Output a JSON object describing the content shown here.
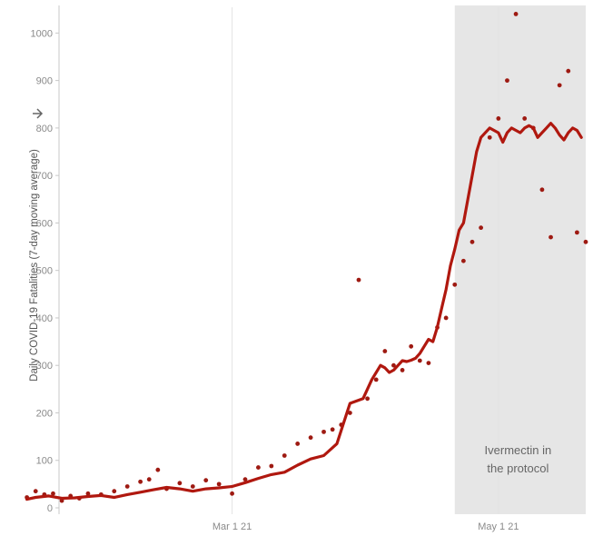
{
  "chart_data": {
    "type": "line",
    "ylabel": "Daily COVID-19 Fatalities (7-day moving average)",
    "ylabel_icon": "sort-arrow-icon",
    "ylim": [
      0,
      1060
    ],
    "xlim": [
      "2021-01-11",
      "2021-05-21"
    ],
    "y_ticks": [
      0,
      100,
      200,
      300,
      400,
      500,
      600,
      700,
      800,
      900,
      1000
    ],
    "x_ticks": [
      {
        "label": "Mar 1 21",
        "value": "2021-03-01"
      },
      {
        "label": "May 1 21",
        "value": "2021-05-01"
      }
    ],
    "grid": "vertical lines at x ticks",
    "shaded_region": {
      "start": "2021-04-21",
      "end": "2021-05-21",
      "color": "#e6e6e6",
      "annotation": [
        "Ivermectin in",
        "the protocol"
      ]
    },
    "colors": {
      "line": "#b0180f",
      "points": "#9e1a12"
    },
    "series": [
      {
        "kind": "line",
        "x": [
          "2021-01-13",
          "2021-01-15",
          "2021-01-18",
          "2021-01-21",
          "2021-01-24",
          "2021-01-27",
          "2021-01-30",
          "2021-02-02",
          "2021-02-05",
          "2021-02-08",
          "2021-02-11",
          "2021-02-14",
          "2021-02-17",
          "2021-02-20",
          "2021-02-23",
          "2021-02-26",
          "2021-03-01",
          "2021-03-04",
          "2021-03-07",
          "2021-03-10",
          "2021-03-13",
          "2021-03-16",
          "2021-03-19",
          "2021-03-22",
          "2021-03-25",
          "2021-03-28",
          "2021-03-31",
          "2021-04-02",
          "2021-04-04",
          "2021-04-05",
          "2021-04-06",
          "2021-04-07",
          "2021-04-08",
          "2021-04-09",
          "2021-04-10",
          "2021-04-11",
          "2021-04-12",
          "2021-04-13",
          "2021-04-14",
          "2021-04-15",
          "2021-04-16",
          "2021-04-17",
          "2021-04-18",
          "2021-04-19",
          "2021-04-20",
          "2021-04-21",
          "2021-04-22",
          "2021-04-23",
          "2021-04-24",
          "2021-04-25",
          "2021-04-26",
          "2021-04-27",
          "2021-04-28",
          "2021-04-29",
          "2021-04-30",
          "2021-05-01",
          "2021-05-02",
          "2021-05-03",
          "2021-05-04",
          "2021-05-05",
          "2021-05-06",
          "2021-05-07",
          "2021-05-08",
          "2021-05-09",
          "2021-05-10",
          "2021-05-11",
          "2021-05-12",
          "2021-05-13",
          "2021-05-14",
          "2021-05-15",
          "2021-05-16",
          "2021-05-17",
          "2021-05-18",
          "2021-05-19",
          "2021-05-20"
        ],
        "y": [
          18,
          22,
          25,
          20,
          21,
          24,
          26,
          22,
          28,
          33,
          38,
          43,
          40,
          35,
          40,
          42,
          45,
          53,
          62,
          70,
          75,
          90,
          103,
          110,
          135,
          220,
          230,
          270,
          300,
          295,
          285,
          290,
          300,
          310,
          308,
          311,
          315,
          325,
          340,
          355,
          350,
          380,
          420,
          460,
          510,
          545,
          585,
          600,
          650,
          700,
          750,
          780,
          790,
          800,
          795,
          790,
          770,
          790,
          800,
          795,
          790,
          800,
          805,
          800,
          780,
          790,
          800,
          810,
          800,
          785,
          775,
          790,
          800,
          795,
          780
        ]
      },
      {
        "kind": "scatter",
        "x": [
          "2021-01-13",
          "2021-01-15",
          "2021-01-17",
          "2021-01-19",
          "2021-01-21",
          "2021-01-23",
          "2021-01-25",
          "2021-01-27",
          "2021-01-30",
          "2021-02-02",
          "2021-02-05",
          "2021-02-08",
          "2021-02-10",
          "2021-02-12",
          "2021-02-14",
          "2021-02-17",
          "2021-02-20",
          "2021-02-23",
          "2021-02-26",
          "2021-03-01",
          "2021-03-04",
          "2021-03-07",
          "2021-03-10",
          "2021-03-13",
          "2021-03-16",
          "2021-03-19",
          "2021-03-22",
          "2021-03-24",
          "2021-03-26",
          "2021-03-28",
          "2021-03-30",
          "2021-04-01",
          "2021-04-03",
          "2021-04-05",
          "2021-04-07",
          "2021-04-09",
          "2021-04-11",
          "2021-04-13",
          "2021-04-15",
          "2021-04-17",
          "2021-04-19",
          "2021-04-21",
          "2021-04-23",
          "2021-04-25",
          "2021-04-27",
          "2021-04-29",
          "2021-05-01",
          "2021-05-03",
          "2021-05-05",
          "2021-05-07",
          "2021-05-09",
          "2021-05-11",
          "2021-05-13",
          "2021-05-15",
          "2021-05-17",
          "2021-05-19",
          "2021-05-21"
        ],
        "y": [
          22,
          35,
          28,
          30,
          15,
          25,
          20,
          30,
          28,
          35,
          45,
          55,
          60,
          80,
          40,
          52,
          45,
          58,
          50,
          30,
          60,
          85,
          88,
          110,
          135,
          148,
          160,
          165,
          175,
          200,
          480,
          230,
          270,
          330,
          300,
          290,
          340,
          310,
          305,
          380,
          400,
          470,
          520,
          560,
          590,
          780,
          820,
          900,
          1040,
          820,
          800,
          670,
          570,
          890,
          920,
          580,
          560
        ]
      }
    ]
  }
}
